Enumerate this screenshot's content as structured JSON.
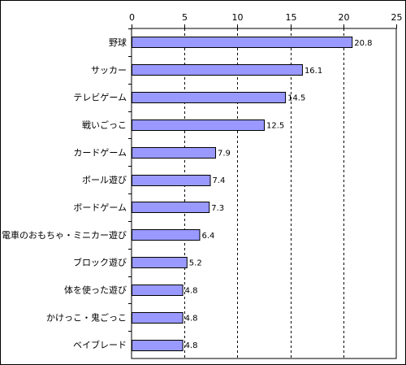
{
  "chart_data": {
    "type": "bar",
    "orientation": "horizontal",
    "categories": [
      "野球",
      "サッカー",
      "テレビゲーム",
      "戦いごっこ",
      "カードゲーム",
      "ボール遊び",
      "ボードゲーム",
      "電車のおもちゃ・ミニカー遊び",
      "ブロック遊び",
      "体を使った遊び",
      "かけっこ・鬼ごっこ",
      "ベイブレード"
    ],
    "values": [
      20.8,
      16.1,
      14.5,
      12.5,
      7.9,
      7.4,
      7.3,
      6.4,
      5.2,
      4.8,
      4.8,
      4.8
    ],
    "value_labels": [
      "20.8",
      "16.1",
      "14.5",
      "12.5",
      "7.9",
      "7.4",
      "7.3",
      "6.4",
      "5.2",
      "4.8",
      "4.8",
      "4.8"
    ],
    "xlim": [
      0,
      25
    ],
    "xticks": [
      0,
      5,
      10,
      15,
      20,
      25
    ],
    "xtick_labels": [
      "0",
      "5",
      "10",
      "15",
      "20",
      "25"
    ],
    "x_axis_position": "top",
    "gridlines": "dashed-vertical",
    "bar_color": "#9999ff",
    "bar_edge_color": "#000000"
  }
}
